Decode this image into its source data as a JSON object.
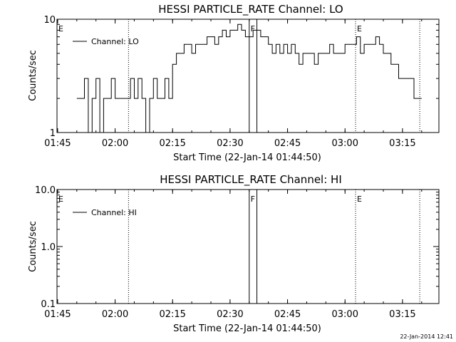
{
  "chart_data": [
    {
      "type": "line",
      "title": "HESSI PARTICLE_RATE Channel: LO",
      "xlabel": "Start Time (22-Jan-14 01:44:50)",
      "ylabel": "Counts/sec",
      "yscale": "log",
      "ylim": [
        1,
        10
      ],
      "yticks": [
        1,
        10
      ],
      "ytick_labels": [
        "1",
        "10"
      ],
      "xlim_minutes": [
        "01:44:50",
        "03:24:30"
      ],
      "xticks": [
        "01:45",
        "02:00",
        "02:15",
        "02:30",
        "02:45",
        "03:00",
        "03:15"
      ],
      "legend": {
        "label": "Channel: LO",
        "placement": "top-left"
      },
      "markers": [
        {
          "time": "01:44:50",
          "style": "dotted",
          "label": "E"
        },
        {
          "time": "02:03:30",
          "style": "dotted",
          "label": ""
        },
        {
          "time": "02:35:00",
          "style": "solid",
          "label": "F"
        },
        {
          "time": "02:37:00",
          "style": "solid",
          "label": ""
        },
        {
          "time": "03:02:45",
          "style": "dotted",
          "label": "E"
        },
        {
          "time": "03:19:30",
          "style": "dotted",
          "label": ""
        }
      ],
      "series": [
        {
          "name": "Channel: LO",
          "x": [
            "01:50",
            "01:51",
            "01:52",
            "01:53",
            "01:54",
            "01:55",
            "01:56",
            "01:57",
            "01:58",
            "01:59",
            "02:00",
            "02:01",
            "02:02",
            "02:03",
            "02:04",
            "02:05",
            "02:06",
            "02:07",
            "02:08",
            "02:09",
            "02:10",
            "02:11",
            "02:12",
            "02:13",
            "02:14",
            "02:15",
            "02:16",
            "02:17",
            "02:18",
            "02:19",
            "02:20",
            "02:21",
            "02:22",
            "02:23",
            "02:24",
            "02:25",
            "02:26",
            "02:27",
            "02:28",
            "02:29",
            "02:30",
            "02:31",
            "02:32",
            "02:33",
            "02:34",
            "02:35",
            "02:36",
            "02:37",
            "02:38",
            "02:39",
            "02:40",
            "02:41",
            "02:42",
            "02:43",
            "02:44",
            "02:45",
            "02:46",
            "02:47",
            "02:48",
            "02:49",
            "02:50",
            "02:51",
            "02:52",
            "02:53",
            "02:54",
            "02:55",
            "02:56",
            "02:57",
            "02:58",
            "02:59",
            "03:00",
            "03:01",
            "03:02",
            "03:03",
            "03:04",
            "03:05",
            "03:06",
            "03:07",
            "03:08",
            "03:09",
            "03:10",
            "03:11",
            "03:12",
            "03:13",
            "03:14",
            "03:15",
            "03:16",
            "03:17",
            "03:18",
            "03:19",
            "03:20"
          ],
          "y": [
            2,
            2,
            3,
            1,
            2,
            3,
            1,
            2,
            2,
            3,
            2,
            2,
            2,
            2,
            3,
            2,
            3,
            2,
            1,
            2,
            3,
            2,
            2,
            3,
            2,
            4,
            5,
            5,
            6,
            6,
            5,
            6,
            6,
            6,
            7,
            7,
            6,
            7,
            8,
            7,
            8,
            8,
            9,
            8,
            7,
            7,
            8,
            8,
            7,
            7,
            6,
            5,
            6,
            5,
            6,
            5,
            6,
            5,
            4,
            5,
            5,
            5,
            4,
            5,
            5,
            5,
            6,
            5,
            5,
            5,
            6,
            6,
            6,
            7,
            5,
            6,
            6,
            6,
            7,
            6,
            5,
            5,
            4,
            4,
            3,
            3,
            3,
            3,
            2,
            2,
            2
          ]
        }
      ]
    },
    {
      "type": "line",
      "title": "HESSI PARTICLE_RATE Channel: HI",
      "xlabel": "Start Time (22-Jan-14 01:44:50)",
      "ylabel": "Counts/sec",
      "yscale": "log",
      "ylim": [
        0.1,
        10
      ],
      "yticks": [
        0.1,
        1,
        10
      ],
      "ytick_labels": [
        "0.1",
        "1.0",
        "10.0"
      ],
      "xticks": [
        "01:45",
        "02:00",
        "02:15",
        "02:30",
        "02:45",
        "03:00",
        "03:15"
      ],
      "legend": {
        "label": "Channel: HI",
        "placement": "top-left"
      },
      "markers": [
        {
          "time": "01:44:50",
          "style": "dotted",
          "label": "E"
        },
        {
          "time": "02:03:30",
          "style": "dotted",
          "label": ""
        },
        {
          "time": "02:35:00",
          "style": "solid",
          "label": "F"
        },
        {
          "time": "02:37:00",
          "style": "solid",
          "label": ""
        },
        {
          "time": "03:02:45",
          "style": "dotted",
          "label": "E"
        },
        {
          "time": "03:19:30",
          "style": "dotted",
          "label": ""
        }
      ],
      "series": [
        {
          "name": "Channel: HI",
          "x": [],
          "y": []
        }
      ]
    }
  ],
  "footer": {
    "timestamp": "22-Jan-2014 12:41"
  }
}
